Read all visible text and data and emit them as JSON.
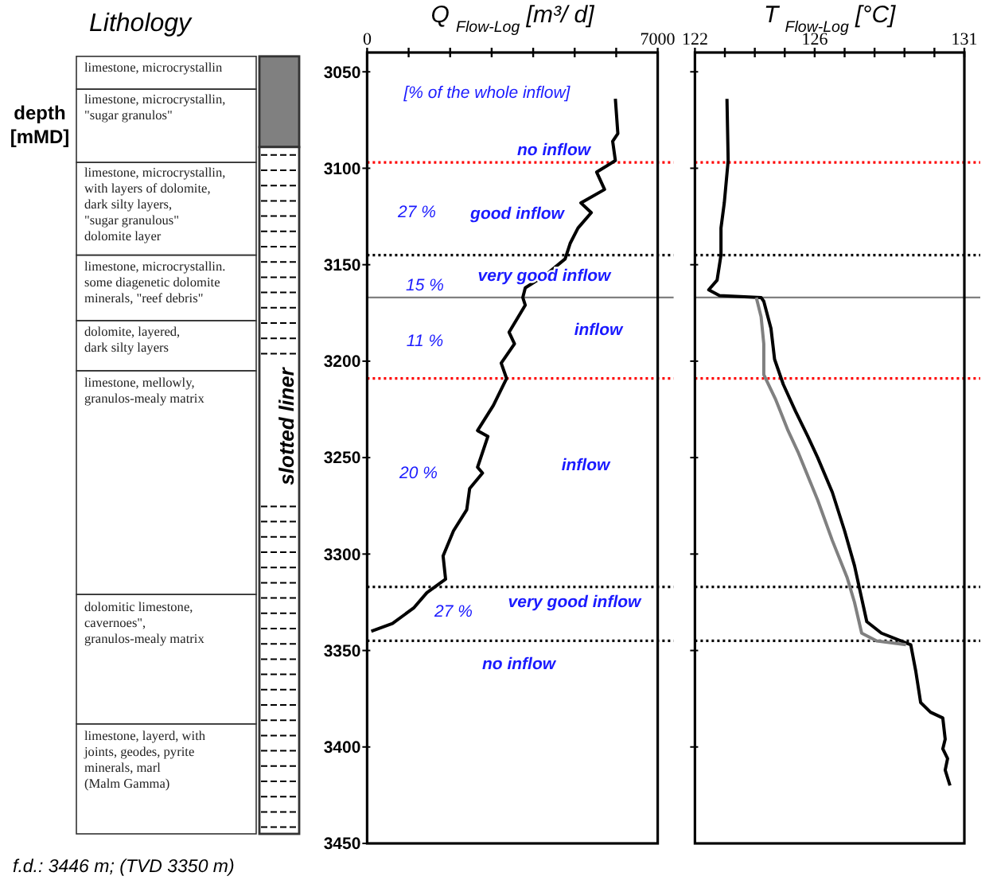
{
  "chart_data": [
    {
      "type": "line",
      "title": "Q $_{Flow-Log}$ [m³/ d]",
      "ylabel": "depth [mMD]",
      "xlim": [
        0,
        7000
      ],
      "xticks": [
        0,
        {
          "value": 1000,
          "label": null
        },
        {
          "value": 2000,
          "label": null
        },
        {
          "value": 3000,
          "label": null
        },
        {
          "value": 4000,
          "label": null
        },
        {
          "value": 5000,
          "label": null
        },
        {
          "value": 6000,
          "label": null
        },
        7000
      ],
      "ylim": [
        3450,
        3040
      ],
      "yticks": [
        3050,
        3100,
        3150,
        3200,
        3250,
        3300,
        3350,
        3400,
        3450
      ],
      "grid": false,
      "marker": "none",
      "line_style": "solid",
      "series": [
        {
          "color": "#000000",
          "x": [
            5980,
            6040,
            5915,
            5980,
            5530,
            5720,
            5150,
            5400,
            5080,
            4890,
            4770,
            4320,
            3810,
            3750,
            3810,
            3420,
            3550,
            3230,
            3360,
            3040,
            2660,
            2910,
            2660,
            2780,
            2470,
            2400,
            2080,
            1830,
            1890,
            1440,
            1120,
            610,
            100
          ],
          "values": [
            3064,
            3082,
            3086,
            3096,
            3102,
            3111,
            3118,
            3123,
            3131,
            3139,
            3147,
            3155,
            3162,
            3167,
            3171,
            3185,
            3191,
            3201,
            3209,
            3223,
            3236,
            3239,
            3255,
            3258,
            3266,
            3277,
            3288,
            3301,
            3313,
            3320,
            3328,
            3336,
            3340
          ]
        }
      ],
      "ref_lines": [
        {
          "axis": "y",
          "value": 3097,
          "color": "#ff0000",
          "line_style": "dotted"
        },
        {
          "axis": "y",
          "value": 3145,
          "color": "#000000",
          "line_style": "dotted"
        },
        {
          "axis": "y",
          "value": 3167,
          "color": "#808080",
          "line_style": "solid"
        },
        {
          "axis": "y",
          "value": 3209,
          "color": "#ff0000",
          "line_style": "dotted"
        },
        {
          "axis": "y",
          "value": 3317,
          "color": "#000000",
          "line_style": "dotted"
        },
        {
          "axis": "y",
          "value": 3345,
          "color": "#000000",
          "line_style": "dotted"
        }
      ],
      "annotations": [
        "[% of the whole inflow]",
        "no inflow",
        "27 %",
        "good inflow",
        "very good inflow",
        "15 %",
        "inflow",
        "11 %",
        "20 %",
        "inflow",
        "very good inflow",
        "27 %",
        "no inflow",
        "f.d.: 3446 m; (TVD 3350 m)",
        "Lithology",
        "limestone, microcrystallin",
        "limestone, microcrystallin,\n\"sugar granulos\"",
        "limestone, microcrystallin,\nwith layers of dolomite,\ndark silty layers,\n\"sugar granulous\"\ndolomite layer",
        "limestone, microcrystallin.\nsome diagenetic dolomite\nminerals, \"reef debris\"",
        "dolomite, layered,\ndark silty layers",
        "limestone, mellowly,\ngranulos-mealy matrix",
        "dolomitic limestone,\ncavernoes\",\ngranulos-mealy matrix",
        "limestone, layerd, with\njoints, geodes, pyrite\nminerals, marl\n(Malm Gamma)",
        "slotted liner"
      ]
    },
    {
      "type": "line",
      "title": "T $_{Flow-Log}$ [°C]",
      "xlim": [
        122,
        131
      ],
      "xticks": [
        122,
        {
          "value": 123,
          "label": null
        },
        {
          "value": 124,
          "label": null
        },
        {
          "value": 125,
          "label": null
        },
        126,
        {
          "value": 127,
          "label": null
        },
        {
          "value": 128,
          "label": null
        },
        {
          "value": 129,
          "label": null
        },
        {
          "value": 130,
          "label": null
        },
        131
      ],
      "ylim": [
        3450,
        3040
      ],
      "yticks": [
        3050,
        3100,
        3150,
        3200,
        3250,
        3300,
        3350,
        3400
      ],
      "tick_labels": "x",
      "grid": false,
      "marker": "none",
      "line_style": "solid",
      "series": [
        {
          "color": "#000000",
          "x": [
            123.07,
            123.11,
            122.98,
            122.87,
            122.87,
            122.74,
            122.46,
            122.82,
            124.21,
            124.3,
            124.54,
            124.66,
            124.95,
            125.36,
            125.77,
            126.1,
            126.59,
            127.0,
            127.33,
            127.57,
            127.74,
            128.23,
            129.21,
            129.38,
            129.54,
            129.87,
            130.28,
            130.36,
            130.28,
            130.44,
            130.36,
            130.52
          ],
          "values": [
            3064,
            3096,
            3118,
            3131,
            3145,
            3158,
            3163,
            3166,
            3167,
            3169,
            3183,
            3199,
            3212,
            3226,
            3239,
            3250,
            3268,
            3288,
            3306,
            3323,
            3335,
            3341,
            3347,
            3361,
            3377,
            3382,
            3385,
            3396,
            3401,
            3406,
            3412,
            3420
          ]
        },
        {
          "color": "#808080",
          "x": [
            124.05,
            124.21,
            124.3,
            124.3,
            124.7,
            125.11,
            125.44,
            126.1,
            126.59,
            127.08,
            127.33,
            127.57,
            128.07,
            129.05
          ],
          "values": [
            3167,
            3177,
            3191,
            3207,
            3220,
            3236,
            3247,
            3272,
            3293,
            3312,
            3325,
            3341,
            3345,
            3347
          ]
        }
      ],
      "ref_lines": [
        {
          "axis": "y",
          "value": 3097,
          "color": "#ff0000",
          "line_style": "dotted"
        },
        {
          "axis": "y",
          "value": 3145,
          "color": "#000000",
          "line_style": "dotted"
        },
        {
          "axis": "y",
          "value": 3167,
          "color": "#808080",
          "line_style": "solid"
        },
        {
          "axis": "y",
          "value": 3209,
          "color": "#ff0000",
          "line_style": "dotted"
        },
        {
          "axis": "y",
          "value": 3317,
          "color": "#000000",
          "line_style": "dotted"
        },
        {
          "axis": "y",
          "value": 3345,
          "color": "#000000",
          "line_style": "dotted"
        }
      ]
    }
  ]
}
